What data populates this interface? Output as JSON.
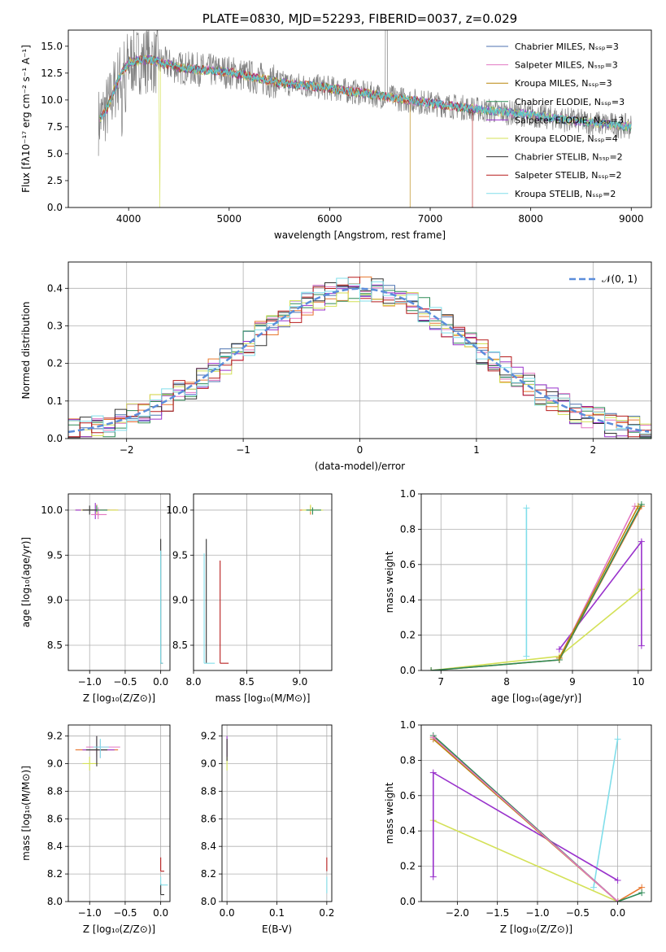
{
  "chart_data": [
    {
      "id": "spectrum",
      "type": "line",
      "title": "PLATE=0830, MJD=52293, FIBERID=0037, z=0.029",
      "xlabel": "wavelength [Angstrom, rest frame]",
      "ylabel": "Flux [fλ10⁻¹⁷ erg cm⁻² s⁻¹ A⁻¹]",
      "xlim": [
        3400,
        9200
      ],
      "ylim": [
        0,
        16.5
      ],
      "xticks": [
        "4000",
        "5000",
        "6000",
        "7000",
        "8000",
        "9000"
      ],
      "yticks": [
        "0.0",
        "2.5",
        "5.0",
        "7.5",
        "10.0",
        "12.5",
        "15.0"
      ],
      "grid": false,
      "legend_position": "top-right",
      "legend": [
        {
          "label": "Chabrier MILES, Nₛₛₚ=3",
          "color": "#4c72b0"
        },
        {
          "label": "Salpeter MILES, Nₛₛₚ=3",
          "color": "#e377c2"
        },
        {
          "label": "Kroupa MILES, Nₛₛₚ=3",
          "color": "#b8860b"
        },
        {
          "label": "Chabrier ELODIE, Nₛₛₚ=3",
          "color": "#2e8b57"
        },
        {
          "label": "Salpeter ELODIE, Nₛₛₚ=3",
          "color": "#9932cc"
        },
        {
          "label": "Kroupa ELODIE, Nₛₛₚ=4",
          "color": "#d4e157"
        },
        {
          "label": "Chabrier STELIB, Nₛₛₚ=2",
          "color": "#333333"
        },
        {
          "label": "Salpeter STELIB, Nₛₛₚ=2",
          "color": "#b71c1c"
        },
        {
          "label": "Kroupa STELIB, Nₛₛₚ=2",
          "color": "#80deea"
        }
      ],
      "data_color": "#808080",
      "model_color": "#5ec8cc",
      "continuum": {
        "x": [
          3700,
          3800,
          3900,
          4000,
          4200,
          4500,
          5000,
          5500,
          6000,
          6500,
          7000,
          7500,
          8000,
          8500,
          9000
        ],
        "y": [
          8.0,
          9.5,
          12.0,
          13.5,
          13.8,
          13.0,
          12.6,
          11.6,
          11.1,
          10.4,
          9.7,
          9.1,
          8.6,
          8.0,
          7.5
        ]
      }
    },
    {
      "id": "residuals",
      "type": "line",
      "xlabel": "(data-model)/error",
      "ylabel": "Normed distribution",
      "xlim": [
        -2.5,
        2.5
      ],
      "ylim": [
        0,
        0.47
      ],
      "xticks": [
        "−2",
        "−1",
        "0",
        "1",
        "2"
      ],
      "yticks": [
        "0.0",
        "0.1",
        "0.2",
        "0.3",
        "0.4"
      ],
      "grid": true,
      "legend_position": "top-right",
      "gaussian_label": "𝒩(0, 1)",
      "gaussian_color": "#5b8ddb",
      "hist_colors": [
        "#4c72b0",
        "#e377c2",
        "#e8772e",
        "#2e8b57",
        "#9932cc",
        "#d4e157",
        "#333333",
        "#b71c1c",
        "#80deea"
      ]
    },
    {
      "id": "age-vs-z",
      "type": "scatter",
      "xlabel": "Z [log₁₀(Z/Z⊙)]",
      "ylabel": "age  [log₁₀(age/yr)]",
      "xlim": [
        -1.3,
        0.13
      ],
      "ylim": [
        8.22,
        10.18
      ],
      "xticks": [
        "−1.0",
        "−0.5",
        "0.0"
      ],
      "yticks": [
        "8.5",
        "9.0",
        "9.5",
        "10.0"
      ],
      "grid": true
    },
    {
      "id": "age-vs-mass",
      "type": "scatter",
      "xlabel": "mass [log₁₀(M/M⊙)]",
      "ylabel": "",
      "xlim": [
        8.0,
        9.3
      ],
      "ylim": [
        8.22,
        10.18
      ],
      "xticks": [
        "8.0",
        "8.5",
        "9.0"
      ],
      "yticks": [
        "8.5",
        "9.0",
        "9.5",
        "10.0"
      ],
      "grid": true
    },
    {
      "id": "weight-vs-age",
      "type": "line",
      "xlabel": "age  [log₁₀(age/yr)]",
      "ylabel": "mass weight",
      "xlim": [
        6.7,
        10.2
      ],
      "ylim": [
        0,
        1.0
      ],
      "xticks": [
        "7",
        "8",
        "9",
        "10"
      ],
      "yticks": [
        "0.0",
        "0.2",
        "0.4",
        "0.6",
        "0.8",
        "1.0"
      ],
      "grid": true,
      "series": [
        {
          "color": "#80deea",
          "x": [
            8.3,
            8.3
          ],
          "y": [
            0.08,
            0.92
          ]
        },
        {
          "color": "#d4e157",
          "x": [
            6.85,
            8.8,
            10.05
          ],
          "y": [
            0.0,
            0.08,
            0.46
          ]
        },
        {
          "color": "#9932cc",
          "x": [
            8.8,
            10.05,
            10.05
          ],
          "y": [
            0.12,
            0.73,
            0.14
          ]
        },
        {
          "color": "#e377c2",
          "x": [
            8.8,
            9.95
          ],
          "y": [
            0.07,
            0.93
          ]
        },
        {
          "color": "#e8772e",
          "x": [
            6.85,
            8.8,
            10.05
          ],
          "y": [
            0.0,
            0.06,
            0.93
          ]
        },
        {
          "color": "#2e8b57",
          "x": [
            6.85,
            8.8,
            10.05
          ],
          "y": [
            0.0,
            0.06,
            0.94
          ]
        },
        {
          "color": "#b8860b",
          "x": [
            8.8,
            10.0
          ],
          "y": [
            0.07,
            0.93
          ]
        }
      ]
    },
    {
      "id": "mass-vs-z",
      "type": "scatter",
      "xlabel": "Z [log₁₀(Z/Z⊙)]",
      "ylabel": "mass [log₁₀(M/M⊙)]",
      "xlim": [
        -1.3,
        0.13
      ],
      "ylim": [
        8.0,
        9.28
      ],
      "xticks": [
        "−1.0",
        "−0.5",
        "0.0"
      ],
      "yticks": [
        "8.0",
        "8.2",
        "8.4",
        "8.6",
        "8.8",
        "9.0",
        "9.2"
      ],
      "grid": true
    },
    {
      "id": "mass-vs-ebv",
      "type": "scatter",
      "xlabel": "E(B-V)",
      "ylabel": "",
      "xlim": [
        -0.01,
        0.21
      ],
      "ylim": [
        8.0,
        9.28
      ],
      "xticks": [
        "0.0",
        "0.1",
        "0.2"
      ],
      "yticks": [
        "8.0",
        "8.2",
        "8.4",
        "8.6",
        "8.8",
        "9.0",
        "9.2"
      ],
      "grid": true
    },
    {
      "id": "weight-vs-z",
      "type": "line",
      "xlabel": "Z [log₁₀(Z/Z⊙)]",
      "ylabel": "mass weight",
      "xlim": [
        -2.45,
        0.42
      ],
      "ylim": [
        0,
        1.0
      ],
      "xticks": [
        "−2.0",
        "−1.5",
        "−1.0",
        "−0.5",
        "0.0"
      ],
      "yticks": [
        "0.0",
        "0.2",
        "0.4",
        "0.6",
        "0.8",
        "1.0"
      ],
      "grid": true,
      "series": [
        {
          "color": "#80deea",
          "x": [
            -0.3,
            0.0
          ],
          "y": [
            0.08,
            0.92
          ]
        },
        {
          "color": "#d4e157",
          "x": [
            -2.3,
            0.0
          ],
          "y": [
            0.46,
            0.0
          ]
        },
        {
          "color": "#9932cc",
          "x": [
            -2.3,
            -2.3,
            0.0
          ],
          "y": [
            0.14,
            0.73,
            0.12
          ]
        },
        {
          "color": "#e8772e",
          "x": [
            -2.3,
            0.0,
            0.3
          ],
          "y": [
            0.93,
            0.0,
            0.08
          ]
        },
        {
          "color": "#b8860b",
          "x": [
            -2.3,
            0.0
          ],
          "y": [
            0.92,
            0.0
          ]
        },
        {
          "color": "#2e8b57",
          "x": [
            -2.3,
            0.0,
            0.3
          ],
          "y": [
            0.94,
            0.0,
            0.05
          ]
        },
        {
          "color": "#e377c2",
          "x": [
            -2.3,
            0.0
          ],
          "y": [
            0.93,
            0.0
          ]
        }
      ]
    }
  ]
}
